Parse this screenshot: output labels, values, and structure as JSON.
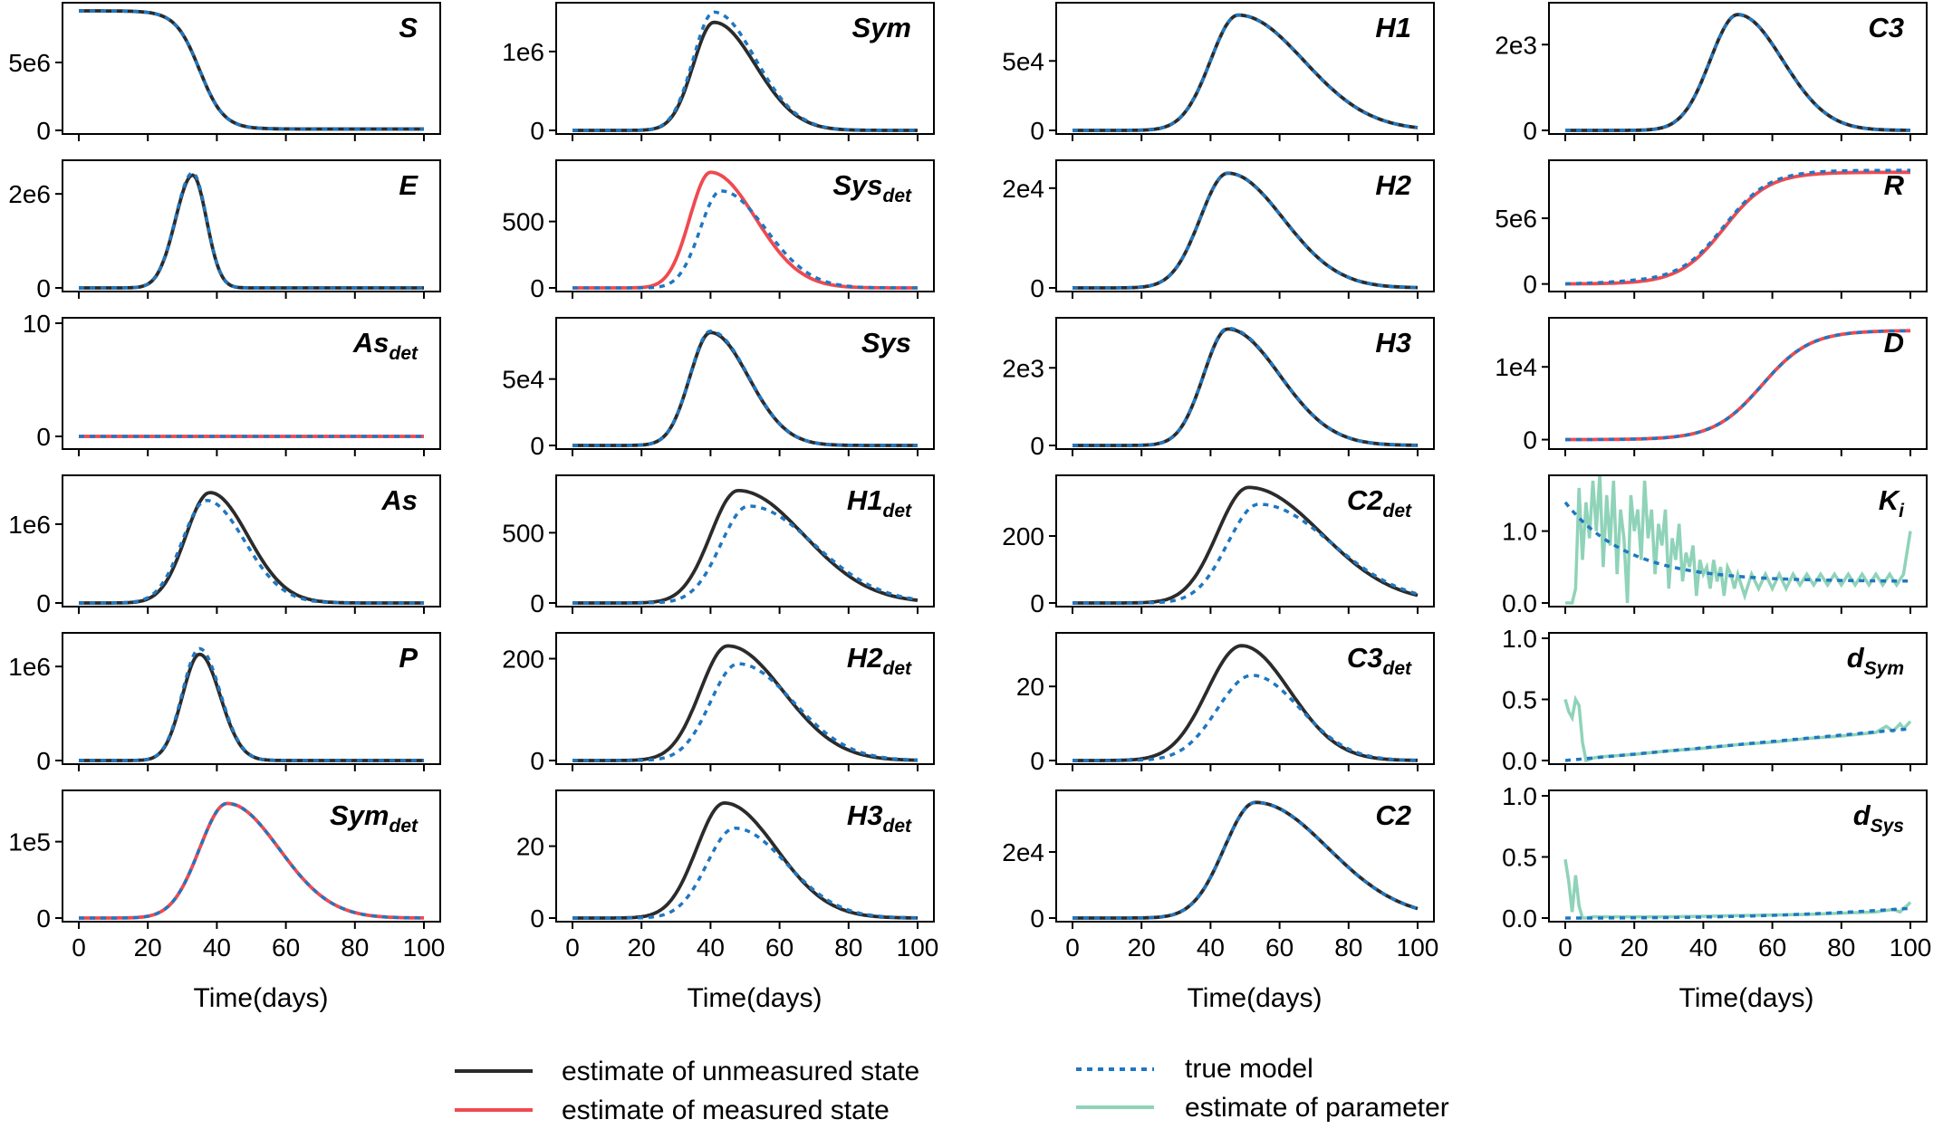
{
  "colors": {
    "unmeasured": "#2b2b2b",
    "measured": "#ef4a50",
    "true_model": "#1f77c2",
    "parameter": "#8fd3b8"
  },
  "xlabel": "Time(days)",
  "xticks": [
    "0",
    "20",
    "40",
    "60",
    "80",
    "100"
  ],
  "legend": [
    {
      "label": "estimate of unmeasured state",
      "style": "unmeasured"
    },
    {
      "label": "estimate of measured state",
      "style": "measured"
    },
    {
      "label": "true model",
      "style": "true_model"
    },
    {
      "label": "estimate of parameter",
      "style": "parameter"
    }
  ],
  "chart_data": [
    {
      "type": "line",
      "col": 0,
      "row": 0,
      "title": "S",
      "title_sub": "",
      "kind": "logistic_down",
      "estimate": "unmeasured",
      "y0": 8800000.0,
      "y1": 100000.0,
      "mid": 35,
      "width": 3.5,
      "true_offset": 0,
      "ylim": [
        0,
        9000000.0
      ],
      "yticks": [
        [
          0,
          "0"
        ],
        [
          5000000.0,
          "5e6"
        ]
      ]
    },
    {
      "type": "line",
      "col": 0,
      "row": 1,
      "title": "E",
      "title_sub": "",
      "kind": "bell",
      "estimate": "unmeasured",
      "peak": 33,
      "amp": 2400000.0,
      "wl": 5,
      "wr": 4,
      "true_peak": 33,
      "true_amp": 2450000.0,
      "ylim": [
        0,
        2600000.0
      ],
      "yticks": [
        [
          0,
          "0"
        ],
        [
          2000000.0,
          "2e6"
        ]
      ]
    },
    {
      "type": "line",
      "col": 0,
      "row": 2,
      "title": "As",
      "title_sub": "det",
      "kind": "flat",
      "estimate": "measured",
      "value": 0,
      "ylim": [
        -0.8,
        10
      ],
      "yticks": [
        [
          0,
          "0"
        ],
        [
          10,
          "10"
        ]
      ]
    },
    {
      "type": "line",
      "col": 0,
      "row": 3,
      "title": "As",
      "title_sub": "",
      "kind": "bell",
      "estimate": "unmeasured",
      "peak": 38,
      "amp": 1400000.0,
      "wl": 7,
      "wr": 11,
      "true_peak": 37,
      "true_amp": 1300000.0,
      "ylim": [
        0,
        1550000.0
      ],
      "yticks": [
        [
          0,
          "0"
        ],
        [
          1000000.0,
          "1e6"
        ]
      ]
    },
    {
      "type": "line",
      "col": 0,
      "row": 4,
      "title": "P",
      "title_sub": "",
      "kind": "bell",
      "estimate": "unmeasured",
      "peak": 35,
      "amp": 1130000.0,
      "wl": 5,
      "wr": 6,
      "true_peak": 35,
      "true_amp": 1190000.0,
      "ylim": [
        0,
        1300000.0
      ],
      "yticks": [
        [
          0,
          "0"
        ],
        [
          1000000.0,
          "1e6"
        ]
      ]
    },
    {
      "type": "line",
      "col": 0,
      "row": 5,
      "title": "Sym",
      "title_sub": "det",
      "kind": "bell",
      "estimate": "measured",
      "peak": 43,
      "amp": 150000.0,
      "wl": 8,
      "wr": 15,
      "true_peak": 43,
      "true_amp": 150000.0,
      "ylim": [
        0,
        160000.0
      ],
      "yticks": [
        [
          0,
          "0"
        ],
        [
          100000.0,
          "1e5"
        ]
      ]
    },
    {
      "type": "line",
      "col": 1,
      "row": 0,
      "title": "Sym",
      "title_sub": "",
      "kind": "bell",
      "estimate": "unmeasured",
      "peak": 41,
      "amp": 1370000.0,
      "wl": 6,
      "wr": 12,
      "true_peak": 41,
      "true_amp": 1500000.0,
      "ylim": [
        0,
        1550000.0
      ],
      "yticks": [
        [
          0,
          "0"
        ],
        [
          1000000.0,
          "1e6"
        ]
      ]
    },
    {
      "type": "line",
      "col": 1,
      "row": 1,
      "title": "Sys",
      "title_sub": "det",
      "kind": "bell",
      "estimate": "measured",
      "peak": 40,
      "amp": 870,
      "wl": 6,
      "wr": 13,
      "true_peak": 43,
      "true_amp": 730,
      "ylim": [
        0,
        920
      ],
      "yticks": [
        [
          0,
          "0"
        ],
        [
          500,
          "500"
        ]
      ]
    },
    {
      "type": "line",
      "col": 1,
      "row": 2,
      "title": "Sys",
      "title_sub": "",
      "kind": "bell",
      "estimate": "unmeasured",
      "peak": 40,
      "amp": 85000.0,
      "wl": 6,
      "wr": 11,
      "true_peak": 40,
      "true_amp": 86000.0,
      "ylim": [
        0,
        92000.0
      ],
      "yticks": [
        [
          0,
          "0"
        ],
        [
          50000.0,
          "5e4"
        ]
      ]
    },
    {
      "type": "line",
      "col": 1,
      "row": 3,
      "title": "H1",
      "title_sub": "det",
      "kind": "bell",
      "estimate": "unmeasured",
      "peak": 48,
      "amp": 800,
      "wl": 8,
      "wr": 19,
      "true_peak": 51,
      "true_amp": 690,
      "ylim": [
        0,
        870
      ],
      "yticks": [
        [
          0,
          "0"
        ],
        [
          500,
          "500"
        ]
      ]
    },
    {
      "type": "line",
      "col": 1,
      "row": 4,
      "title": "H2",
      "title_sub": "det",
      "kind": "bell",
      "estimate": "unmeasured",
      "peak": 45,
      "amp": 225,
      "wl": 8,
      "wr": 16,
      "true_peak": 48,
      "true_amp": 190,
      "ylim": [
        0,
        240
      ],
      "yticks": [
        [
          0,
          "0"
        ],
        [
          200,
          "200"
        ]
      ]
    },
    {
      "type": "line",
      "col": 1,
      "row": 5,
      "title": "H3",
      "title_sub": "det",
      "kind": "bell",
      "estimate": "unmeasured",
      "peak": 44,
      "amp": 32,
      "wl": 8,
      "wr": 15,
      "true_peak": 47,
      "true_amp": 25,
      "ylim": [
        0,
        34
      ],
      "yticks": [
        [
          0,
          "0"
        ],
        [
          20,
          "20"
        ]
      ]
    },
    {
      "type": "line",
      "col": 2,
      "row": 0,
      "title": "H1",
      "title_sub": "",
      "kind": "bell",
      "estimate": "unmeasured",
      "peak": 48,
      "amp": 83000.0,
      "wl": 8,
      "wr": 19,
      "true_peak": 48,
      "true_amp": 83000.0,
      "ylim": [
        0,
        88000.0
      ],
      "yticks": [
        [
          0,
          "0"
        ],
        [
          50000.0,
          "5e4"
        ]
      ]
    },
    {
      "type": "line",
      "col": 2,
      "row": 1,
      "title": "H2",
      "title_sub": "",
      "kind": "bell",
      "estimate": "unmeasured",
      "peak": 45,
      "amp": 23000.0,
      "wl": 8,
      "wr": 16,
      "true_peak": 45,
      "true_amp": 23000.0,
      "ylim": [
        0,
        24500.0
      ],
      "yticks": [
        [
          0,
          "0"
        ],
        [
          20000.0,
          "2e4"
        ]
      ]
    },
    {
      "type": "line",
      "col": 2,
      "row": 2,
      "title": "H3",
      "title_sub": "",
      "kind": "bell",
      "estimate": "unmeasured",
      "peak": 45,
      "amp": 3000,
      "wl": 7,
      "wr": 15,
      "true_peak": 45,
      "true_amp": 3020,
      "ylim": [
        0,
        3150
      ],
      "yticks": [
        [
          0,
          "0"
        ],
        [
          2000,
          "2e3"
        ]
      ]
    },
    {
      "type": "line",
      "col": 2,
      "row": 3,
      "title": "C2",
      "title_sub": "det",
      "kind": "bell",
      "estimate": "unmeasured",
      "peak": 51,
      "amp": 345,
      "wl": 9,
      "wr": 21,
      "true_peak": 54,
      "true_amp": 295,
      "ylim": [
        0,
        365
      ],
      "yticks": [
        [
          0,
          "0"
        ],
        [
          200,
          "200"
        ]
      ]
    },
    {
      "type": "line",
      "col": 2,
      "row": 4,
      "title": "C3",
      "title_sub": "det",
      "kind": "bell",
      "estimate": "unmeasured",
      "peak": 49,
      "amp": 31,
      "wl": 10,
      "wr": 14,
      "true_peak": 52,
      "true_amp": 23,
      "ylim": [
        0,
        33
      ],
      "yticks": [
        [
          0,
          "0"
        ],
        [
          20,
          "20"
        ]
      ]
    },
    {
      "type": "line",
      "col": 2,
      "row": 5,
      "title": "C2",
      "title_sub": "",
      "kind": "bell",
      "estimate": "unmeasured",
      "peak": 53,
      "amp": 35000.0,
      "wl": 9,
      "wr": 21,
      "true_peak": 53,
      "true_amp": 35000.0,
      "ylim": [
        0,
        37000.0
      ],
      "yticks": [
        [
          0,
          "0"
        ],
        [
          20000.0,
          "2e4"
        ]
      ]
    },
    {
      "type": "line",
      "col": 3,
      "row": 0,
      "title": "C3",
      "title_sub": "",
      "kind": "bell",
      "estimate": "unmeasured",
      "peak": 50,
      "amp": 2700,
      "wl": 8,
      "wr": 13,
      "true_peak": 50,
      "true_amp": 2700,
      "ylim": [
        0,
        2850
      ],
      "yticks": [
        [
          0,
          "0"
        ],
        [
          2000,
          "2e3"
        ]
      ]
    },
    {
      "type": "line",
      "col": 3,
      "row": 1,
      "title": "R",
      "title_sub": "",
      "kind": "logistic_up",
      "estimate": "measured",
      "y0": 0,
      "y1": 8500000.0,
      "mid": 46,
      "width": 6.5,
      "true_offset": 150000.0,
      "ylim": [
        -300000.0,
        9000000.0
      ],
      "yticks": [
        [
          0,
          "0"
        ],
        [
          5000000.0,
          "5e6"
        ]
      ]
    },
    {
      "type": "line",
      "col": 3,
      "row": 2,
      "title": "D",
      "title_sub": "",
      "kind": "logistic_up",
      "estimate": "measured",
      "y0": 0,
      "y1": 15000.0,
      "mid": 57,
      "width": 7,
      "true_offset": 0,
      "ylim": [
        -800,
        16000.0
      ],
      "yticks": [
        [
          0,
          "0"
        ],
        [
          10000.0,
          "1e4"
        ]
      ]
    },
    {
      "type": "line",
      "col": 3,
      "row": 3,
      "title": "K",
      "title_sub": "i",
      "kind": "param",
      "estimate": "parameter",
      "true_kind": "decay",
      "true_start": 1.4,
      "true_end": 0.3,
      "true_rate": 0.055,
      "x": [
        0,
        2,
        3,
        4,
        5,
        6,
        7,
        8,
        9,
        10,
        11,
        12,
        13,
        14,
        15,
        16,
        17,
        18,
        19,
        20,
        21,
        22,
        23,
        24,
        25,
        26,
        27,
        28,
        29,
        30,
        31,
        32,
        33,
        34,
        35,
        36,
        37,
        38,
        39,
        40,
        41,
        42,
        43,
        44,
        45,
        46,
        47,
        48,
        49,
        50,
        52,
        54,
        56,
        58,
        60,
        62,
        64,
        66,
        68,
        70,
        72,
        74,
        76,
        78,
        80,
        82,
        84,
        86,
        88,
        90,
        92,
        94,
        96,
        98,
        100
      ],
      "y": [
        0.0,
        0.0,
        0.2,
        1.6,
        0.6,
        1.4,
        0.9,
        1.7,
        1.0,
        1.8,
        0.5,
        1.5,
        0.8,
        1.7,
        0.4,
        1.3,
        0.9,
        0.0,
        1.5,
        1.0,
        1.3,
        0.6,
        1.7,
        0.9,
        1.3,
        0.4,
        1.1,
        0.8,
        1.3,
        0.2,
        0.9,
        0.6,
        1.1,
        0.3,
        0.7,
        0.5,
        0.8,
        0.1,
        0.6,
        0.4,
        0.5,
        0.2,
        0.6,
        0.3,
        0.5,
        0.1,
        0.5,
        0.4,
        0.2,
        0.4,
        0.1,
        0.4,
        0.2,
        0.4,
        0.2,
        0.4,
        0.2,
        0.4,
        0.25,
        0.4,
        0.25,
        0.4,
        0.25,
        0.4,
        0.25,
        0.4,
        0.25,
        0.4,
        0.25,
        0.4,
        0.25,
        0.4,
        0.25,
        0.4,
        1.0
      ],
      "ylim": [
        0,
        1.7
      ],
      "yticks": [
        [
          0,
          "0.0"
        ],
        [
          1.0,
          "1.0"
        ]
      ]
    },
    {
      "type": "line",
      "col": 3,
      "row": 4,
      "title": "d",
      "title_sub": "Sym",
      "kind": "param",
      "estimate": "parameter",
      "true_kind": "linear",
      "true_start": 0.0,
      "true_end": 0.26,
      "x": [
        0,
        1,
        2,
        3,
        4,
        5,
        6,
        8,
        10,
        15,
        20,
        30,
        40,
        50,
        60,
        70,
        80,
        90,
        93,
        95,
        97,
        98,
        100
      ],
      "y": [
        0.5,
        0.4,
        0.35,
        0.5,
        0.45,
        0.15,
        0.0,
        0.02,
        0.03,
        0.04,
        0.05,
        0.08,
        0.1,
        0.13,
        0.15,
        0.18,
        0.2,
        0.23,
        0.28,
        0.24,
        0.3,
        0.26,
        0.32
      ],
      "ylim": [
        0,
        1.0
      ],
      "yticks": [
        [
          0,
          "0.0"
        ],
        [
          0.5,
          "0.5"
        ],
        [
          1.0,
          "1.0"
        ]
      ]
    },
    {
      "type": "line",
      "col": 3,
      "row": 5,
      "title": "d",
      "title_sub": "Sys",
      "kind": "param",
      "estimate": "parameter",
      "true_kind": "linear_flat",
      "true_start": 0.0,
      "true_end": 0.08,
      "x": [
        0,
        1,
        2,
        3,
        4,
        5,
        6,
        8,
        10,
        20,
        30,
        40,
        50,
        60,
        70,
        80,
        90,
        95,
        97,
        98,
        99,
        100
      ],
      "y": [
        0.48,
        0.3,
        0.05,
        0.35,
        0.1,
        0.0,
        0.0,
        0.01,
        0.01,
        0.01,
        0.01,
        0.015,
        0.02,
        0.025,
        0.03,
        0.04,
        0.05,
        0.07,
        0.05,
        0.08,
        0.1,
        0.13
      ],
      "ylim": [
        0,
        1.0
      ],
      "yticks": [
        [
          0,
          "0.0"
        ],
        [
          0.5,
          "0.5"
        ],
        [
          1.0,
          "1.0"
        ]
      ]
    }
  ]
}
